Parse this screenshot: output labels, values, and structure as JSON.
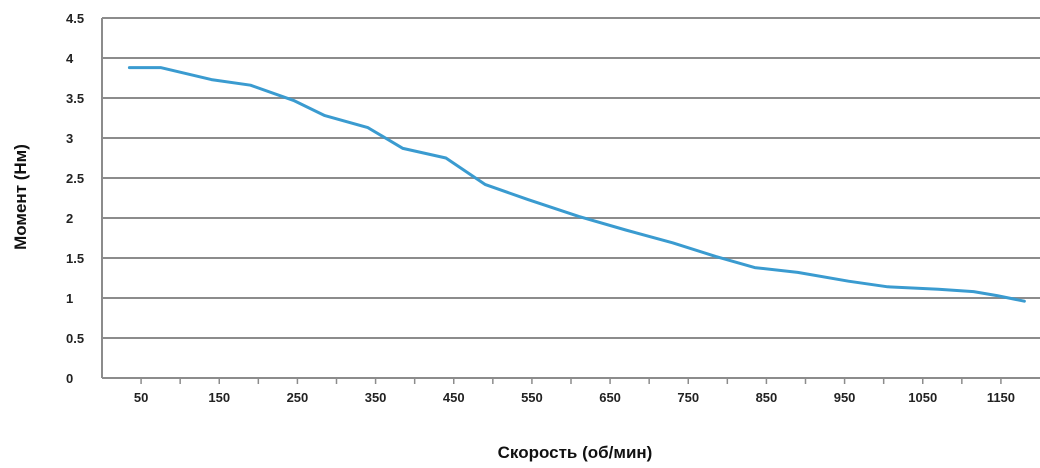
{
  "chart_data": {
    "type": "line",
    "xlabel": "Скорость (об/мин)",
    "ylabel": "Момент (Нм)",
    "xlim": [
      0,
      1200
    ],
    "ylim": [
      0,
      4.5
    ],
    "x_ticks": [
      50,
      150,
      250,
      350,
      450,
      550,
      650,
      750,
      850,
      950,
      1050,
      1150
    ],
    "x_tick_labels": [
      "50",
      "150",
      "250",
      "350",
      "450",
      "550",
      "650",
      "750",
      "850",
      "950",
      "1050",
      "1150"
    ],
    "y_ticks": [
      0,
      0.5,
      1,
      1.5,
      2,
      2.5,
      3,
      3.5,
      4,
      4.5
    ],
    "y_tick_labels": [
      "0",
      "0.5",
      "1",
      "1.5",
      "2",
      "2.5",
      "3",
      "3.5",
      "4",
      "4.5"
    ],
    "grid": "horizontal",
    "series": [
      {
        "color": "#3a9bd0",
        "x": [
          35,
          75,
          140,
          190,
          245,
          285,
          340,
          385,
          440,
          490,
          545,
          610,
          670,
          730,
          785,
          835,
          890,
          955,
          1005,
          1070,
          1115,
          1145,
          1180
        ],
        "y": [
          3.88,
          3.88,
          3.73,
          3.66,
          3.47,
          3.28,
          3.13,
          2.87,
          2.75,
          2.42,
          2.23,
          2.02,
          1.85,
          1.69,
          1.52,
          1.38,
          1.32,
          1.21,
          1.14,
          1.11,
          1.08,
          1.03,
          0.96
        ]
      }
    ]
  }
}
